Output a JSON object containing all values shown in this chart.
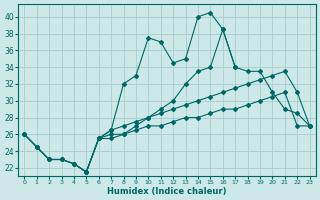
{
  "xlabel": "Humidex (Indice chaleur)",
  "background_color": "#cce8e8",
  "grid_color": "#aacccc",
  "line_color": "#006666",
  "xlim": [
    -0.5,
    23.5
  ],
  "ylim": [
    21.0,
    41.5
  ],
  "yticks": [
    22,
    24,
    26,
    28,
    30,
    32,
    34,
    36,
    38,
    40
  ],
  "xticks": [
    0,
    1,
    2,
    3,
    4,
    5,
    6,
    7,
    8,
    9,
    10,
    11,
    12,
    13,
    14,
    15,
    16,
    17,
    18,
    19,
    20,
    21,
    22,
    23
  ],
  "lines": [
    {
      "x": [
        0,
        1,
        2,
        3,
        4,
        5,
        6,
        7,
        8,
        9,
        10,
        11,
        12,
        13,
        14,
        15,
        16,
        17,
        18,
        19,
        20,
        21,
        22,
        23
      ],
      "y": [
        26,
        24.5,
        23,
        23,
        22.5,
        21.5,
        25.5,
        26.5,
        32,
        33,
        37.5,
        37,
        34.5,
        35,
        40,
        40.5,
        38.5,
        34,
        null,
        null,
        null,
        null,
        null,
        null
      ]
    },
    {
      "x": [
        5,
        6,
        7,
        8,
        9,
        10,
        11,
        12,
        13,
        14,
        15,
        16,
        17,
        18,
        19,
        20,
        21,
        22,
        23
      ],
      "y": [
        21.5,
        25.5,
        25.5,
        26,
        27,
        28,
        29,
        30,
        32,
        33.5,
        34,
        38.5,
        34,
        33.5,
        33.5,
        31,
        29,
        28.5,
        27
      ]
    },
    {
      "x": [
        0,
        1,
        2,
        3,
        4,
        5,
        6,
        7,
        8,
        9,
        10,
        11,
        12,
        13,
        14,
        15,
        16,
        17,
        18,
        19,
        20,
        21,
        22,
        23
      ],
      "y": [
        26,
        24.5,
        23,
        23,
        22.5,
        21.5,
        25.5,
        26.5,
        27,
        27.5,
        28,
        28.5,
        29,
        29.5,
        30,
        30.5,
        31,
        31.5,
        32,
        32.5,
        33,
        33.5,
        31,
        27
      ]
    },
    {
      "x": [
        0,
        1,
        2,
        3,
        4,
        5,
        6,
        7,
        8,
        9,
        10,
        11,
        12,
        13,
        14,
        15,
        16,
        17,
        18,
        19,
        20,
        21,
        22,
        23
      ],
      "y": [
        26,
        24.5,
        23,
        23,
        22.5,
        21.5,
        25.5,
        26,
        26,
        26.5,
        27,
        27,
        27.5,
        28,
        28,
        28.5,
        29,
        29,
        29.5,
        30,
        30.5,
        31,
        27,
        27
      ]
    }
  ]
}
